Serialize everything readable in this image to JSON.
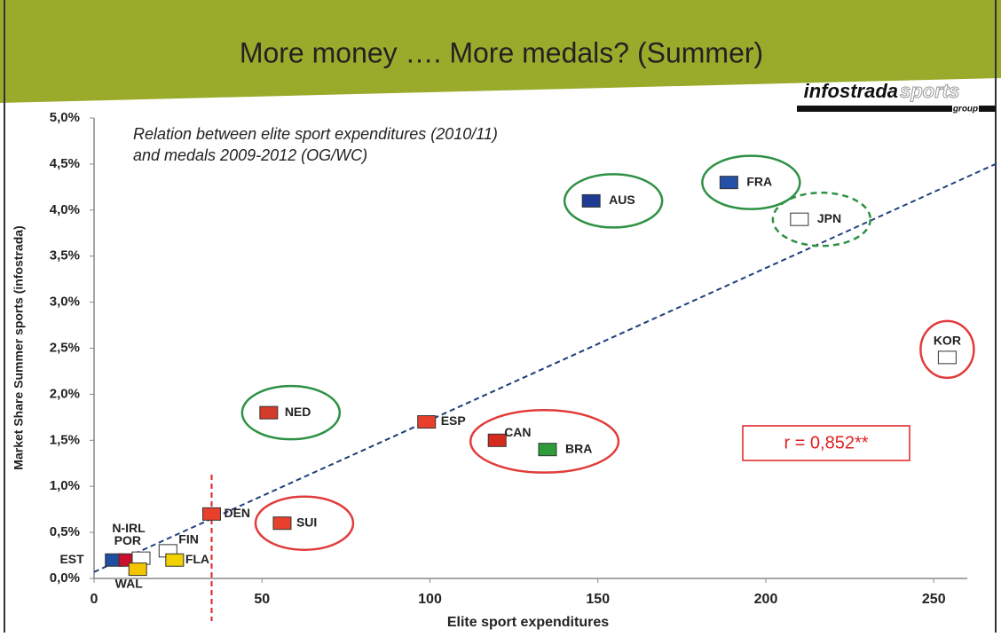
{
  "header": {
    "title": "More money …. More medals? (Summer)",
    "logo_main": "infostrada",
    "logo_accent": "sports",
    "logo_sub": "group"
  },
  "chart_data": {
    "type": "scatter",
    "subtitle": [
      "Relation between elite sport expenditures (2010/11)",
      "and medals 2009-2012 (OG/WC)"
    ],
    "x_label": "Elite sport expenditures",
    "y_label": "Market Share Summer sports (infostrada)",
    "labels": [
      "EST",
      "POR",
      "N-IRL",
      "WAL",
      "FIN",
      "FLA",
      "DEN",
      "SUI",
      "NED",
      "ESP",
      "AUS",
      "CAN",
      "BRA",
      "FRA",
      "JPN",
      "KOR"
    ],
    "x": [
      6,
      10,
      14,
      13,
      22,
      24,
      35,
      56,
      52,
      99,
      148,
      120,
      135,
      189,
      210,
      254
    ],
    "values": [
      0.2,
      0.2,
      0.22,
      0.1,
      0.3,
      0.2,
      0.7,
      0.6,
      1.8,
      1.7,
      4.1,
      1.5,
      1.4,
      4.3,
      3.9,
      2.4
    ],
    "flag_colors": [
      "#1f4fa0",
      "#c8102e",
      "#ffffff",
      "#f2c500",
      "#ffffff",
      "#f2d100",
      "#e8402a",
      "#e8402a",
      "#d63a2a",
      "#e8402a",
      "#1f3a93",
      "#d52b1e",
      "#2e9b3a",
      "#2550a8",
      "#ffffff",
      "#ffffff"
    ],
    "circles": [
      null,
      null,
      null,
      null,
      null,
      null,
      null,
      {
        "color": "#e23b3b",
        "dashed": false
      },
      {
        "color": "#2e9144",
        "dashed": false
      },
      null,
      {
        "color": "#2e9144",
        "dashed": false
      },
      {
        "color": "#e23b3b",
        "dashed": false
      },
      {
        "color": "#e23b3b",
        "dashed": false
      },
      {
        "color": "#2e9144",
        "dashed": false
      },
      {
        "color": "#2e9144",
        "dashed": true
      },
      {
        "color": "#e23b3b",
        "dashed": false
      }
    ],
    "xlim": [
      0,
      260
    ],
    "xticks": [
      0,
      50,
      100,
      150,
      200,
      250
    ],
    "ylim": [
      0,
      5
    ],
    "yticks": [
      {
        "value": 0,
        "label": "0,0%"
      },
      {
        "value": 0.5,
        "label": "0,5%"
      },
      {
        "value": 1,
        "label": "1,0%"
      },
      {
        "value": 1.5,
        "label": "1,5%"
      },
      {
        "value": 2,
        "label": "2,0%"
      },
      {
        "value": 2.5,
        "label": "2,5%"
      },
      {
        "value": 3,
        "label": "3,0%"
      },
      {
        "value": 3.5,
        "label": "3,5%"
      },
      {
        "value": 4,
        "label": "4,0%"
      },
      {
        "value": 4.5,
        "label": "4,5%"
      },
      {
        "value": 5,
        "label": "5,0%"
      }
    ],
    "trendline": {
      "x": [
        0,
        269
      ],
      "y": [
        0.07,
        4.51
      ],
      "color": "#1f3f7a"
    },
    "reference_x": 35,
    "reference_color": "#e02020",
    "annotation": "r = 0,852**",
    "annotation_color": "#e02020",
    "grid": false
  }
}
